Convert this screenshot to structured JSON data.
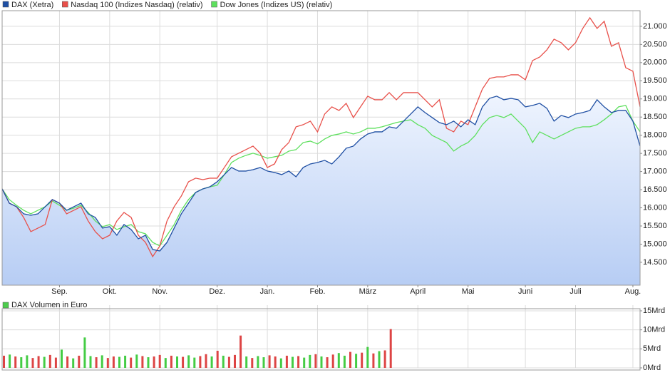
{
  "chart_data": [
    {
      "type": "line",
      "categories": [
        null,
        null,
        null,
        null,
        null,
        null,
        null,
        null,
        "Sep.",
        null,
        null,
        null,
        null,
        null,
        null,
        "Okt.",
        null,
        null,
        null,
        null,
        null,
        null,
        "Nov.",
        null,
        null,
        null,
        null,
        null,
        null,
        null,
        "Dez.",
        null,
        null,
        null,
        null,
        null,
        null,
        "Jan.",
        null,
        null,
        null,
        null,
        null,
        null,
        "Feb.",
        null,
        null,
        null,
        null,
        null,
        null,
        "März",
        null,
        null,
        null,
        null,
        null,
        null,
        "April",
        null,
        null,
        null,
        null,
        null,
        null,
        "Mai",
        null,
        null,
        null,
        null,
        null,
        null,
        null,
        "Juni",
        null,
        null,
        null,
        null,
        null,
        null,
        "Juli",
        null,
        null,
        null,
        null,
        null,
        null,
        null,
        "Aug.",
        null
      ],
      "series": [
        {
          "name": "DAX (Xetra)",
          "color": "#1f4fa3",
          "area": true,
          "values": [
            16522,
            16129,
            16031,
            15835,
            15795,
            15835,
            16031,
            16227,
            16129,
            15933,
            16031,
            16129,
            15835,
            15736,
            15442,
            15481,
            15245,
            15540,
            15403,
            15147,
            15245,
            14853,
            14813,
            15049,
            15442,
            15835,
            16129,
            16424,
            16522,
            16581,
            16718,
            16915,
            17111,
            17013,
            17013,
            17052,
            17111,
            17013,
            16974,
            16915,
            17013,
            16856,
            17111,
            17209,
            17249,
            17308,
            17209,
            17406,
            17642,
            17700,
            17897,
            18034,
            18093,
            18093,
            18231,
            18191,
            18388,
            18584,
            18781,
            18624,
            18486,
            18349,
            18290,
            18388,
            18231,
            18427,
            18290,
            18781,
            19016,
            19075,
            18977,
            19016,
            18977,
            18781,
            18820,
            18879,
            18741,
            18388,
            18545,
            18486,
            18584,
            18624,
            18682,
            18977,
            18781,
            18624,
            18682,
            18682,
            18388,
            17700
          ]
        },
        {
          "name": "Nasdaq 100 (Indizes Nasdaq) (relativ)",
          "color": "#e8504a",
          "values": [
            16522,
            16129,
            16031,
            15736,
            15344,
            15442,
            15540,
            16227,
            16129,
            15835,
            15933,
            16031,
            15638,
            15344,
            15147,
            15245,
            15638,
            15874,
            15736,
            15245,
            15049,
            14656,
            14951,
            15638,
            16031,
            16326,
            16718,
            16817,
            16777,
            16817,
            16817,
            17111,
            17406,
            17504,
            17602,
            17700,
            17504,
            17111,
            17209,
            17602,
            17799,
            18231,
            18290,
            18388,
            18093,
            18584,
            18781,
            18682,
            18879,
            18486,
            18781,
            19075,
            18977,
            18977,
            19173,
            18977,
            19173,
            19173,
            19173,
            18977,
            18781,
            18977,
            18191,
            18093,
            18388,
            18290,
            18781,
            19272,
            19566,
            19606,
            19606,
            19664,
            19664,
            19527,
            20057,
            20155,
            20352,
            20646,
            20548,
            20352,
            20548,
            20941,
            21236,
            20941,
            21137,
            20450,
            20548,
            19861,
            19763,
            18781
          ]
        },
        {
          "name": "Dow Jones (Indizes US) (relativ)",
          "color": "#5ee05e",
          "values": [
            16522,
            16227,
            16070,
            15933,
            15835,
            15933,
            16031,
            16188,
            16070,
            15933,
            15992,
            16070,
            15874,
            15638,
            15481,
            15540,
            15403,
            15481,
            15540,
            15344,
            15285,
            15049,
            14951,
            15245,
            15540,
            15933,
            16227,
            16424,
            16522,
            16581,
            16620,
            16915,
            17249,
            17367,
            17445,
            17504,
            17445,
            17367,
            17406,
            17445,
            17563,
            17602,
            17799,
            17838,
            17759,
            17897,
            17995,
            18034,
            18093,
            18034,
            18093,
            18191,
            18191,
            18231,
            18290,
            18349,
            18388,
            18427,
            18290,
            18191,
            17995,
            17897,
            17799,
            17563,
            17700,
            17799,
            17995,
            18290,
            18486,
            18545,
            18486,
            18584,
            18388,
            18191,
            17799,
            18093,
            17995,
            17897,
            17995,
            18093,
            18191,
            18231,
            18231,
            18290,
            18427,
            18584,
            18781,
            18820,
            18388,
            18093
          ]
        }
      ],
      "ylim": [
        13870,
        21430
      ],
      "yticks": [
        {
          "value": 14500,
          "label": "14.500"
        },
        {
          "value": 15000,
          "label": "15.000"
        },
        {
          "value": 15500,
          "label": "15.500"
        },
        {
          "value": 16000,
          "label": "16.000"
        },
        {
          "value": 16500,
          "label": "16.500"
        },
        {
          "value": 17000,
          "label": "17.000"
        },
        {
          "value": 17500,
          "label": "17.500"
        },
        {
          "value": 18000,
          "label": "18.000"
        },
        {
          "value": 18500,
          "label": "18.500"
        },
        {
          "value": 19000,
          "label": "19.000"
        },
        {
          "value": 19500,
          "label": "19.500"
        },
        {
          "value": 20000,
          "label": "20.000"
        },
        {
          "value": 20500,
          "label": "20.500"
        },
        {
          "value": 21000,
          "label": "21.000"
        }
      ],
      "grid": true
    },
    {
      "type": "bar",
      "legend": "DAX Volumen in Euro",
      "legend_color": "#4ccc4c",
      "values": [
        3.2,
        3.5,
        3.0,
        2.8,
        3.3,
        2.6,
        3.1,
        2.9,
        3.4,
        2.7,
        4.8,
        3.0,
        2.5,
        3.2,
        8.0,
        3.1,
        2.8,
        3.3,
        2.6,
        3.0,
        2.9,
        3.2,
        2.7,
        3.5,
        3.1,
        2.8,
        3.0,
        3.4,
        2.6,
        3.2,
        3.0,
        2.9,
        3.3,
        2.7,
        3.1,
        3.6,
        3.0,
        4.5,
        3.2,
        2.9,
        3.4,
        8.5,
        3.0,
        2.6,
        3.1,
        2.8,
        3.3,
        3.0,
        2.5,
        3.2,
        2.9,
        3.1,
        2.7,
        3.4,
        3.6,
        3.0,
        2.8,
        3.5,
        3.9,
        3.2,
        4.2,
        3.7,
        4.0,
        5.5,
        3.8,
        4.4,
        4.6,
        10.2
      ],
      "colors": [
        "#d44",
        "#4c4",
        "#d44",
        "#4c4",
        "#4c4",
        "#d44",
        "#d44",
        "#4c4",
        "#d44",
        "#d44",
        "#4c4",
        "#d44",
        "#4c4",
        "#d44",
        "#4c4",
        "#4c4",
        "#d44",
        "#4c4",
        "#d44",
        "#d44",
        "#4c4",
        "#4c4",
        "#d44",
        "#4c4",
        "#d44",
        "#4c4",
        "#d44",
        "#d44",
        "#4c4",
        "#d44",
        "#4c4",
        "#d44",
        "#4c4",
        "#4c4",
        "#d44",
        "#d44",
        "#4c4",
        "#d44",
        "#4c4",
        "#d44",
        "#d44",
        "#d44",
        "#4c4",
        "#d44",
        "#4c4",
        "#4c4",
        "#d44",
        "#d44",
        "#4c4",
        "#d44",
        "#4c4",
        "#d44",
        "#4c4",
        "#4c4",
        "#d44",
        "#4c4",
        "#d44",
        "#d44",
        "#4c4",
        "#4c4",
        "#d44",
        "#4c4",
        "#d44",
        "#4c4",
        "#d44",
        "#4c4",
        "#d44",
        "#d44"
      ],
      "ylim": [
        0,
        16.5
      ],
      "yticks": [
        {
          "value": 0,
          "label": "0Mrd"
        },
        {
          "value": 5,
          "label": "5Mrd"
        },
        {
          "value": 10,
          "label": "10Mrd"
        },
        {
          "value": 15,
          "label": "15Mrd"
        }
      ],
      "grid": true
    }
  ]
}
